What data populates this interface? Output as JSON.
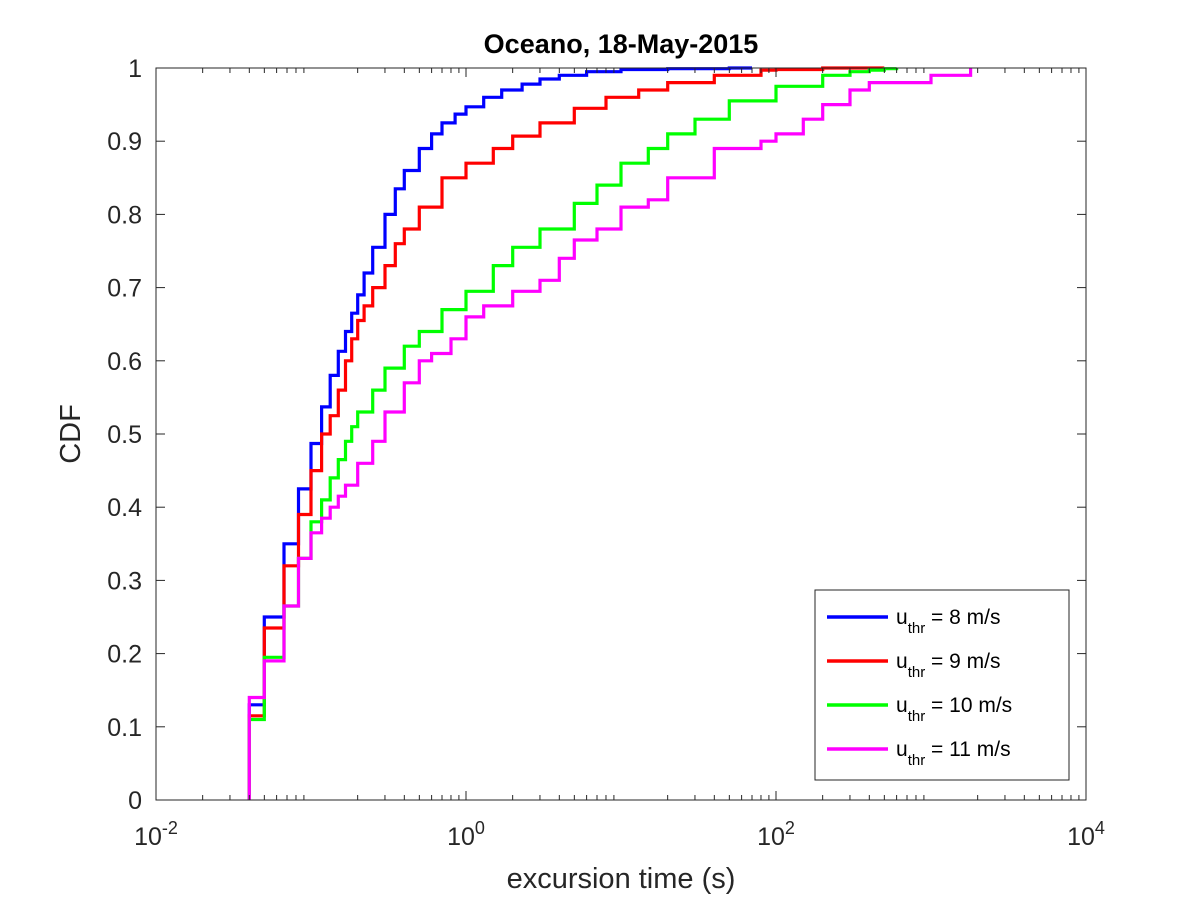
{
  "chart_data": {
    "type": "line",
    "title": "Oceano, 18-May-2015",
    "xlabel": "excursion time (s)",
    "ylabel": "CDF",
    "xscale": "log",
    "xlim": [
      0.01,
      10000
    ],
    "ylim": [
      0,
      1
    ],
    "x_ticks": [
      {
        "value": 0.01,
        "base": "10",
        "exp": "-2"
      },
      {
        "value": 1,
        "base": "10",
        "exp": "0"
      },
      {
        "value": 100,
        "base": "10",
        "exp": "2"
      },
      {
        "value": 10000,
        "base": "10",
        "exp": "4"
      }
    ],
    "y_ticks": [
      {
        "value": 0,
        "label": "0"
      },
      {
        "value": 0.1,
        "label": "0.1"
      },
      {
        "value": 0.2,
        "label": "0.2"
      },
      {
        "value": 0.3,
        "label": "0.3"
      },
      {
        "value": 0.4,
        "label": "0.4"
      },
      {
        "value": 0.5,
        "label": "0.5"
      },
      {
        "value": 0.6,
        "label": "0.6"
      },
      {
        "value": 0.7,
        "label": "0.7"
      },
      {
        "value": 0.8,
        "label": "0.8"
      },
      {
        "value": 0.9,
        "label": "0.9"
      },
      {
        "value": 1,
        "label": "1"
      }
    ],
    "grid": false,
    "legend_position": "bottom-right",
    "series": [
      {
        "name": "u_thr = 8 m/s",
        "legend": {
          "main": "u",
          "sub": "thr",
          "rest": " = 8 m/s"
        },
        "color": "#0000ff",
        "x": [
          0.04,
          0.05,
          0.067,
          0.083,
          0.1,
          0.117,
          0.133,
          0.15,
          0.167,
          0.183,
          0.2,
          0.22,
          0.25,
          0.3,
          0.35,
          0.4,
          0.5,
          0.6,
          0.7,
          0.85,
          1,
          1.3,
          1.7,
          2.3,
          3,
          4,
          6,
          10,
          20,
          50,
          70
        ],
        "y": [
          0.13,
          0.25,
          0.35,
          0.425,
          0.487,
          0.537,
          0.58,
          0.613,
          0.64,
          0.665,
          0.69,
          0.72,
          0.755,
          0.8,
          0.835,
          0.86,
          0.89,
          0.91,
          0.925,
          0.937,
          0.947,
          0.96,
          0.97,
          0.978,
          0.985,
          0.99,
          0.995,
          0.998,
          0.999,
          1.0,
          1.0
        ]
      },
      {
        "name": "u_thr = 9 m/s",
        "legend": {
          "main": "u",
          "sub": "thr",
          "rest": " = 9 m/s"
        },
        "color": "#ff0000",
        "x": [
          0.04,
          0.05,
          0.067,
          0.083,
          0.1,
          0.117,
          0.133,
          0.15,
          0.167,
          0.183,
          0.2,
          0.22,
          0.25,
          0.3,
          0.35,
          0.4,
          0.5,
          0.7,
          1,
          1.5,
          2,
          3,
          5,
          8,
          13,
          20,
          40,
          80,
          100,
          200,
          300,
          500
        ],
        "y": [
          0.115,
          0.235,
          0.32,
          0.39,
          0.45,
          0.5,
          0.525,
          0.56,
          0.6,
          0.63,
          0.655,
          0.675,
          0.7,
          0.73,
          0.76,
          0.78,
          0.81,
          0.85,
          0.87,
          0.89,
          0.907,
          0.925,
          0.945,
          0.96,
          0.97,
          0.98,
          0.99,
          0.997,
          0.998,
          1.0,
          1.0,
          1.0
        ]
      },
      {
        "name": "u_thr = 10 m/s",
        "legend": {
          "main": "u",
          "sub": "thr",
          "rest": " = 10 m/s"
        },
        "color": "#00ff00",
        "x": [
          0.04,
          0.05,
          0.067,
          0.083,
          0.1,
          0.117,
          0.133,
          0.15,
          0.167,
          0.183,
          0.2,
          0.25,
          0.3,
          0.4,
          0.5,
          0.7,
          1,
          1.5,
          2,
          3,
          5,
          7,
          10,
          15,
          20,
          30,
          50,
          100,
          200,
          300,
          400,
          500,
          600
        ],
        "y": [
          0.11,
          0.195,
          0.265,
          0.33,
          0.38,
          0.41,
          0.44,
          0.465,
          0.49,
          0.51,
          0.53,
          0.56,
          0.59,
          0.62,
          0.64,
          0.67,
          0.695,
          0.73,
          0.755,
          0.78,
          0.815,
          0.84,
          0.87,
          0.89,
          0.91,
          0.93,
          0.955,
          0.975,
          0.99,
          0.995,
          0.997,
          0.999,
          1.0
        ]
      },
      {
        "name": "u_thr = 11 m/s",
        "legend": {
          "main": "u",
          "sub": "thr",
          "rest": " = 11 m/s"
        },
        "color": "#ff00ff",
        "x": [
          0.04,
          0.05,
          0.067,
          0.083,
          0.1,
          0.117,
          0.133,
          0.15,
          0.167,
          0.2,
          0.25,
          0.3,
          0.4,
          0.5,
          0.6,
          0.8,
          1,
          1.3,
          2,
          3,
          4,
          5,
          7,
          10,
          15,
          20,
          40,
          80,
          100,
          150,
          200,
          300,
          400,
          1000,
          1500,
          1800
        ],
        "y": [
          0.14,
          0.19,
          0.265,
          0.33,
          0.365,
          0.385,
          0.4,
          0.415,
          0.43,
          0.46,
          0.49,
          0.53,
          0.57,
          0.6,
          0.61,
          0.63,
          0.66,
          0.675,
          0.695,
          0.71,
          0.74,
          0.765,
          0.78,
          0.81,
          0.82,
          0.85,
          0.89,
          0.9,
          0.91,
          0.93,
          0.95,
          0.97,
          0.98,
          0.99,
          0.99,
          1.0
        ]
      }
    ]
  }
}
